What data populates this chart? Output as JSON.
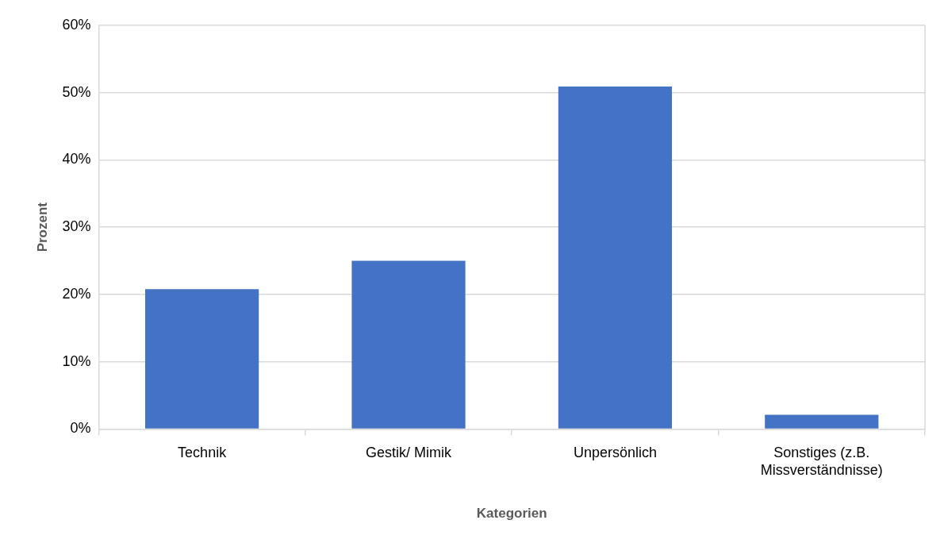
{
  "chart_data": {
    "type": "bar",
    "xlabel": "Kategorien",
    "ylabel": "Prozent",
    "categories": [
      "Technik",
      "Gestik/ Mimik",
      "Unpersönlich",
      "Sonstiges (z.B. Missverständnisse)"
    ],
    "values": [
      20.8,
      25.0,
      50.9,
      2.1
    ],
    "color": "#4472c4",
    "ylim": [
      0,
      60
    ],
    "yticks": [
      {
        "value": 0,
        "label": "0%"
      },
      {
        "value": 10,
        "label": "10%"
      },
      {
        "value": 20,
        "label": "20%"
      },
      {
        "value": 30,
        "label": "30%"
      },
      {
        "value": 40,
        "label": "40%"
      },
      {
        "value": 50,
        "label": "50%"
      },
      {
        "value": 60,
        "label": "60%"
      }
    ],
    "grid": "y"
  }
}
